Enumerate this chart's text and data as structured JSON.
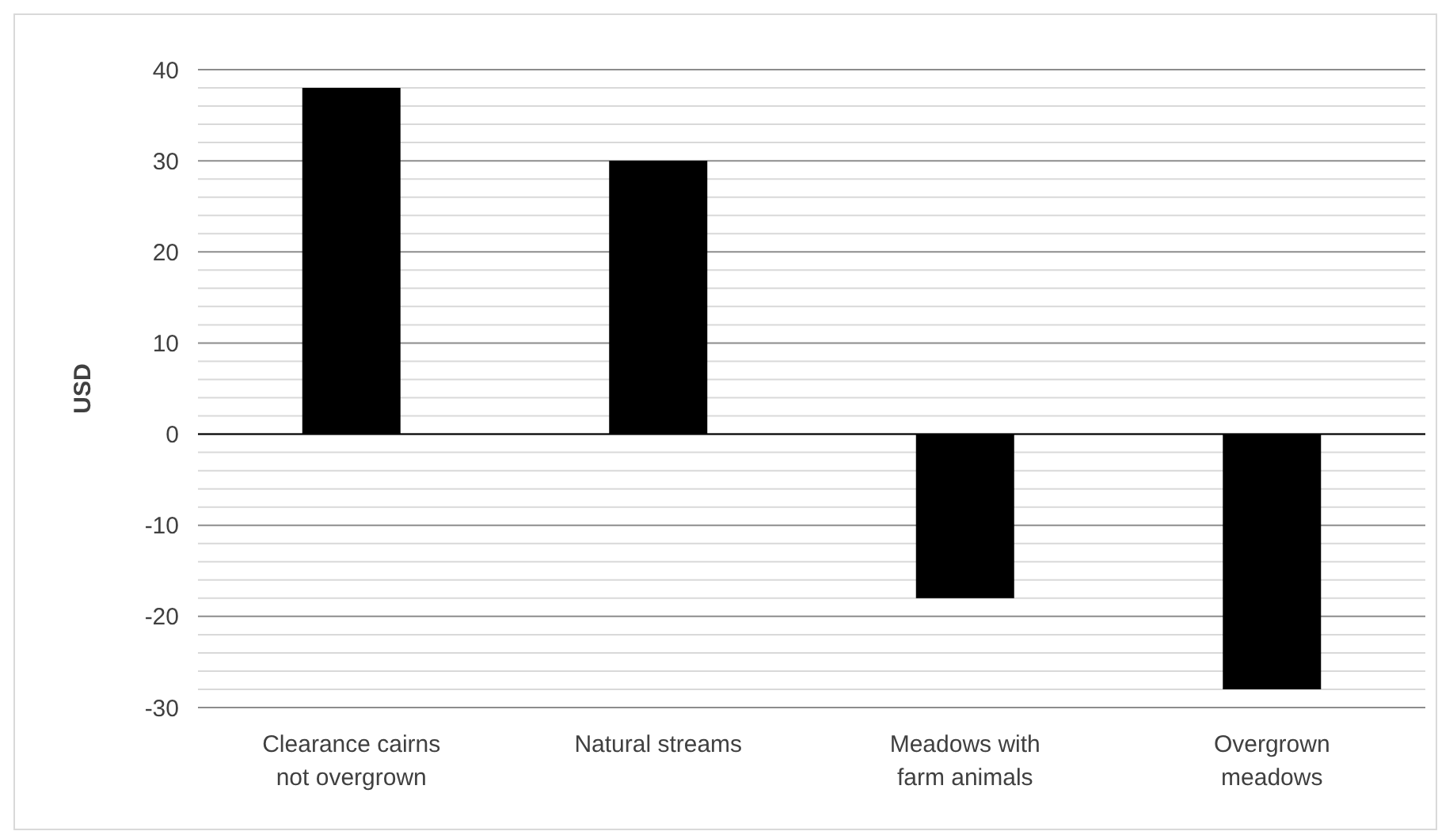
{
  "chart_data": {
    "type": "bar",
    "ylabel": "USD",
    "categories": [
      "Clearance cairns not overgrown",
      "Natural streams",
      "Meadows with farm animals",
      "Overgrown meadows"
    ],
    "values": [
      38,
      30,
      -18,
      -28
    ],
    "color": "#000000",
    "ylim": [
      -30,
      40
    ],
    "yticks": [
      -30,
      {
        "value": -28,
        "label": null
      },
      {
        "value": -26,
        "label": null
      },
      {
        "value": -24,
        "label": null
      },
      {
        "value": -22,
        "label": null
      },
      -20,
      {
        "value": -18,
        "label": null
      },
      {
        "value": -16,
        "label": null
      },
      {
        "value": -14,
        "label": null
      },
      {
        "value": -12,
        "label": null
      },
      -10,
      {
        "value": -8,
        "label": null
      },
      {
        "value": -6,
        "label": null
      },
      {
        "value": -4,
        "label": null
      },
      {
        "value": -2,
        "label": null
      },
      0,
      {
        "value": 2,
        "label": null
      },
      {
        "value": 4,
        "label": null
      },
      {
        "value": 6,
        "label": null
      },
      {
        "value": 8,
        "label": null
      },
      10,
      {
        "value": 12,
        "label": null
      },
      {
        "value": 14,
        "label": null
      },
      {
        "value": 16,
        "label": null
      },
      {
        "value": 18,
        "label": null
      },
      20,
      {
        "value": 22,
        "label": null
      },
      {
        "value": 24,
        "label": null
      },
      {
        "value": 26,
        "label": null
      },
      {
        "value": 28,
        "label": null
      },
      30,
      {
        "value": 32,
        "label": null
      },
      {
        "value": 34,
        "label": null
      },
      {
        "value": 36,
        "label": null
      },
      {
        "value": 38,
        "label": null
      },
      40
    ],
    "grid": true
  }
}
